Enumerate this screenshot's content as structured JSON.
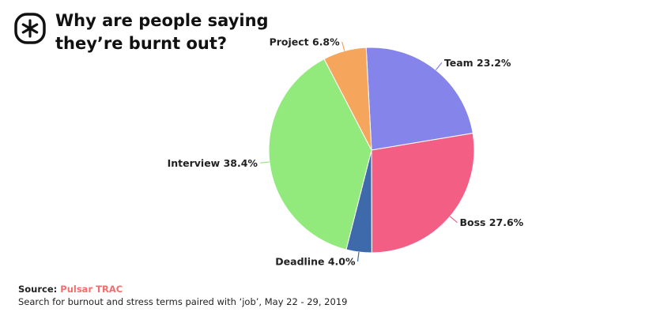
{
  "header": {
    "title_line1": "Why are people saying",
    "title_line2": "they’re burnt out?",
    "logo_icon": "asterisk-logo-icon"
  },
  "chart_data": {
    "type": "pie",
    "title": "Why are people saying they’re burnt out?",
    "slices": [
      {
        "name": "Team",
        "value": 23.2,
        "label": "Team 23.2%",
        "color": "#8484ea"
      },
      {
        "name": "Boss",
        "value": 27.6,
        "label": "Boss 27.6%",
        "color": "#f25e84"
      },
      {
        "name": "Deadline",
        "value": 4.0,
        "label": "Deadline 4.0%",
        "color": "#3e6aab"
      },
      {
        "name": "Interview",
        "value": 38.4,
        "label": "Interview 38.4%",
        "color": "#92ea7c"
      },
      {
        "name": "Project",
        "value": 6.8,
        "label": "Project 6.8%",
        "color": "#f5a55c"
      }
    ]
  },
  "footer": {
    "source_label": "Source:",
    "source_name": "Pulsar TRAC",
    "note": "Search for burnout and stress terms paired with ‘job’, May 22 - 29, 2019"
  }
}
